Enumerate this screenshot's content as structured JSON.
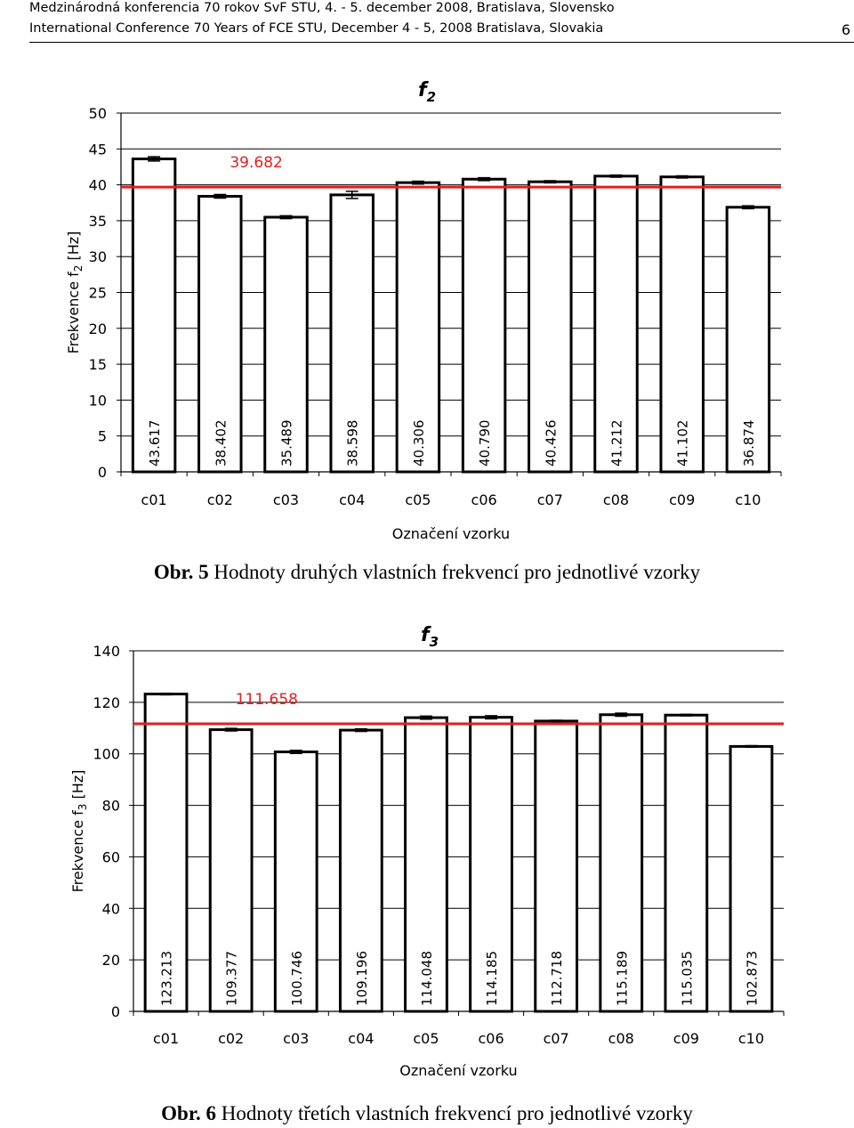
{
  "header": {
    "line1": "Medzinárodná konferencia 70 rokov SvF STU, 4. - 5. december 2008, Bratislava, Slovensko",
    "line2": "International Conference 70 Years of FCE STU, December 4 - 5, 2008 Bratislava, Slovakia",
    "page_number": "6"
  },
  "captions": {
    "fig5_label": "Obr. 5",
    "fig5_text": " Hodnoty druhých vlastních frekvencí pro jednotlivé vzorky",
    "fig6_label": "Obr. 6",
    "fig6_text": " Hodnoty třetích vlastních frekvencí pro jednotlivé vzorky"
  },
  "colors": {
    "mean_line": "#e02020",
    "bar_fill": "#ffffff",
    "bar_stroke": "#000000"
  },
  "chart_data": [
    {
      "type": "bar",
      "title": "f",
      "title_sub": "2",
      "ylabel": "Frekvence f",
      "ylabel_sub": "2",
      "ylabel_unit": " [Hz]",
      "xlabel": "Označení vzorku",
      "categories": [
        "c01",
        "c02",
        "c03",
        "c04",
        "c05",
        "c06",
        "c07",
        "c08",
        "c09",
        "c10"
      ],
      "values": [
        43.617,
        38.402,
        35.489,
        38.598,
        40.306,
        40.79,
        40.426,
        41.212,
        41.102,
        36.874
      ],
      "value_labels": [
        "43.617",
        "38.402",
        "35.489",
        "38.598",
        "40.306",
        "40.790",
        "40.426",
        "41.212",
        "41.102",
        "36.874"
      ],
      "error": [
        0.3,
        0.25,
        0.2,
        0.5,
        0.2,
        0.2,
        0.15,
        0.15,
        0.15,
        0.2
      ],
      "mean": 39.682,
      "mean_label": "39.682",
      "ylim": [
        0,
        50
      ],
      "yticks": [
        0,
        5,
        10,
        15,
        20,
        25,
        30,
        35,
        40,
        45,
        50
      ],
      "grid": "horizontal"
    },
    {
      "type": "bar",
      "title": "f",
      "title_sub": "3",
      "ylabel": "Frekvence f",
      "ylabel_sub": "3",
      "ylabel_unit": " [Hz]",
      "xlabel": "Označení vzorku",
      "categories": [
        "c01",
        "c02",
        "c03",
        "c04",
        "c05",
        "c06",
        "c07",
        "c08",
        "c09",
        "c10"
      ],
      "values": [
        123.213,
        109.377,
        100.746,
        109.196,
        114.048,
        114.185,
        112.718,
        115.189,
        115.035,
        102.873
      ],
      "value_labels": [
        "123.213",
        "109.377",
        "100.746",
        "109.196",
        "114.048",
        "114.185",
        "112.718",
        "115.189",
        "115.035",
        "102.873"
      ],
      "error": [
        0.3,
        0.5,
        0.6,
        0.5,
        0.6,
        0.6,
        0.3,
        0.6,
        0.3,
        0.3
      ],
      "mean": 111.658,
      "mean_label": "111.658",
      "ylim": [
        0,
        140
      ],
      "yticks": [
        0,
        20,
        40,
        60,
        80,
        100,
        120,
        140
      ],
      "grid": "horizontal"
    }
  ]
}
